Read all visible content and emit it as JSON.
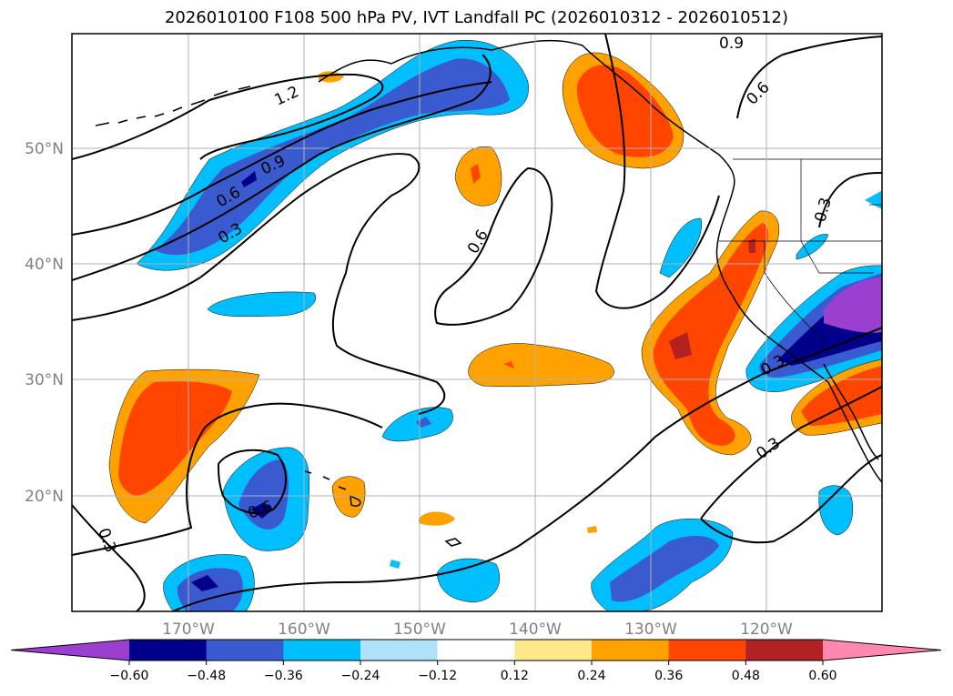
{
  "title": "2026010100 F108 500 hPa PV, IVT Landfall PC (2026010312 - 2026010512)",
  "map": {
    "lon_labels": [
      "170°W",
      "160°W",
      "150°W",
      "140°W",
      "130°W",
      "120°W"
    ],
    "lat_labels": [
      "50°N",
      "40°N",
      "30°N",
      "20°N"
    ],
    "gridlines": true,
    "pv_contour_labels": [
      "1.2",
      "0.9",
      "0.6",
      "0.3",
      "0.6",
      "0.3",
      "0.9",
      "0.6",
      "0.3",
      "0.3",
      "0.3",
      "0.6"
    ]
  },
  "colorbar": {
    "orientation": "horizontal",
    "extend": "both",
    "tick_labels": [
      "−0.60",
      "−0.48",
      "−0.36",
      "−0.24",
      "−0.12",
      "0.12",
      "0.24",
      "0.36",
      "0.48",
      "0.60"
    ],
    "colors": [
      "#9b3fd0",
      "#00008b",
      "#3a5bd0",
      "#00bfff",
      "#aee2f8",
      "#ffffff",
      "#ffe88a",
      "#ffa200",
      "#ff4500",
      "#b22222",
      "#ff88b0"
    ]
  }
}
